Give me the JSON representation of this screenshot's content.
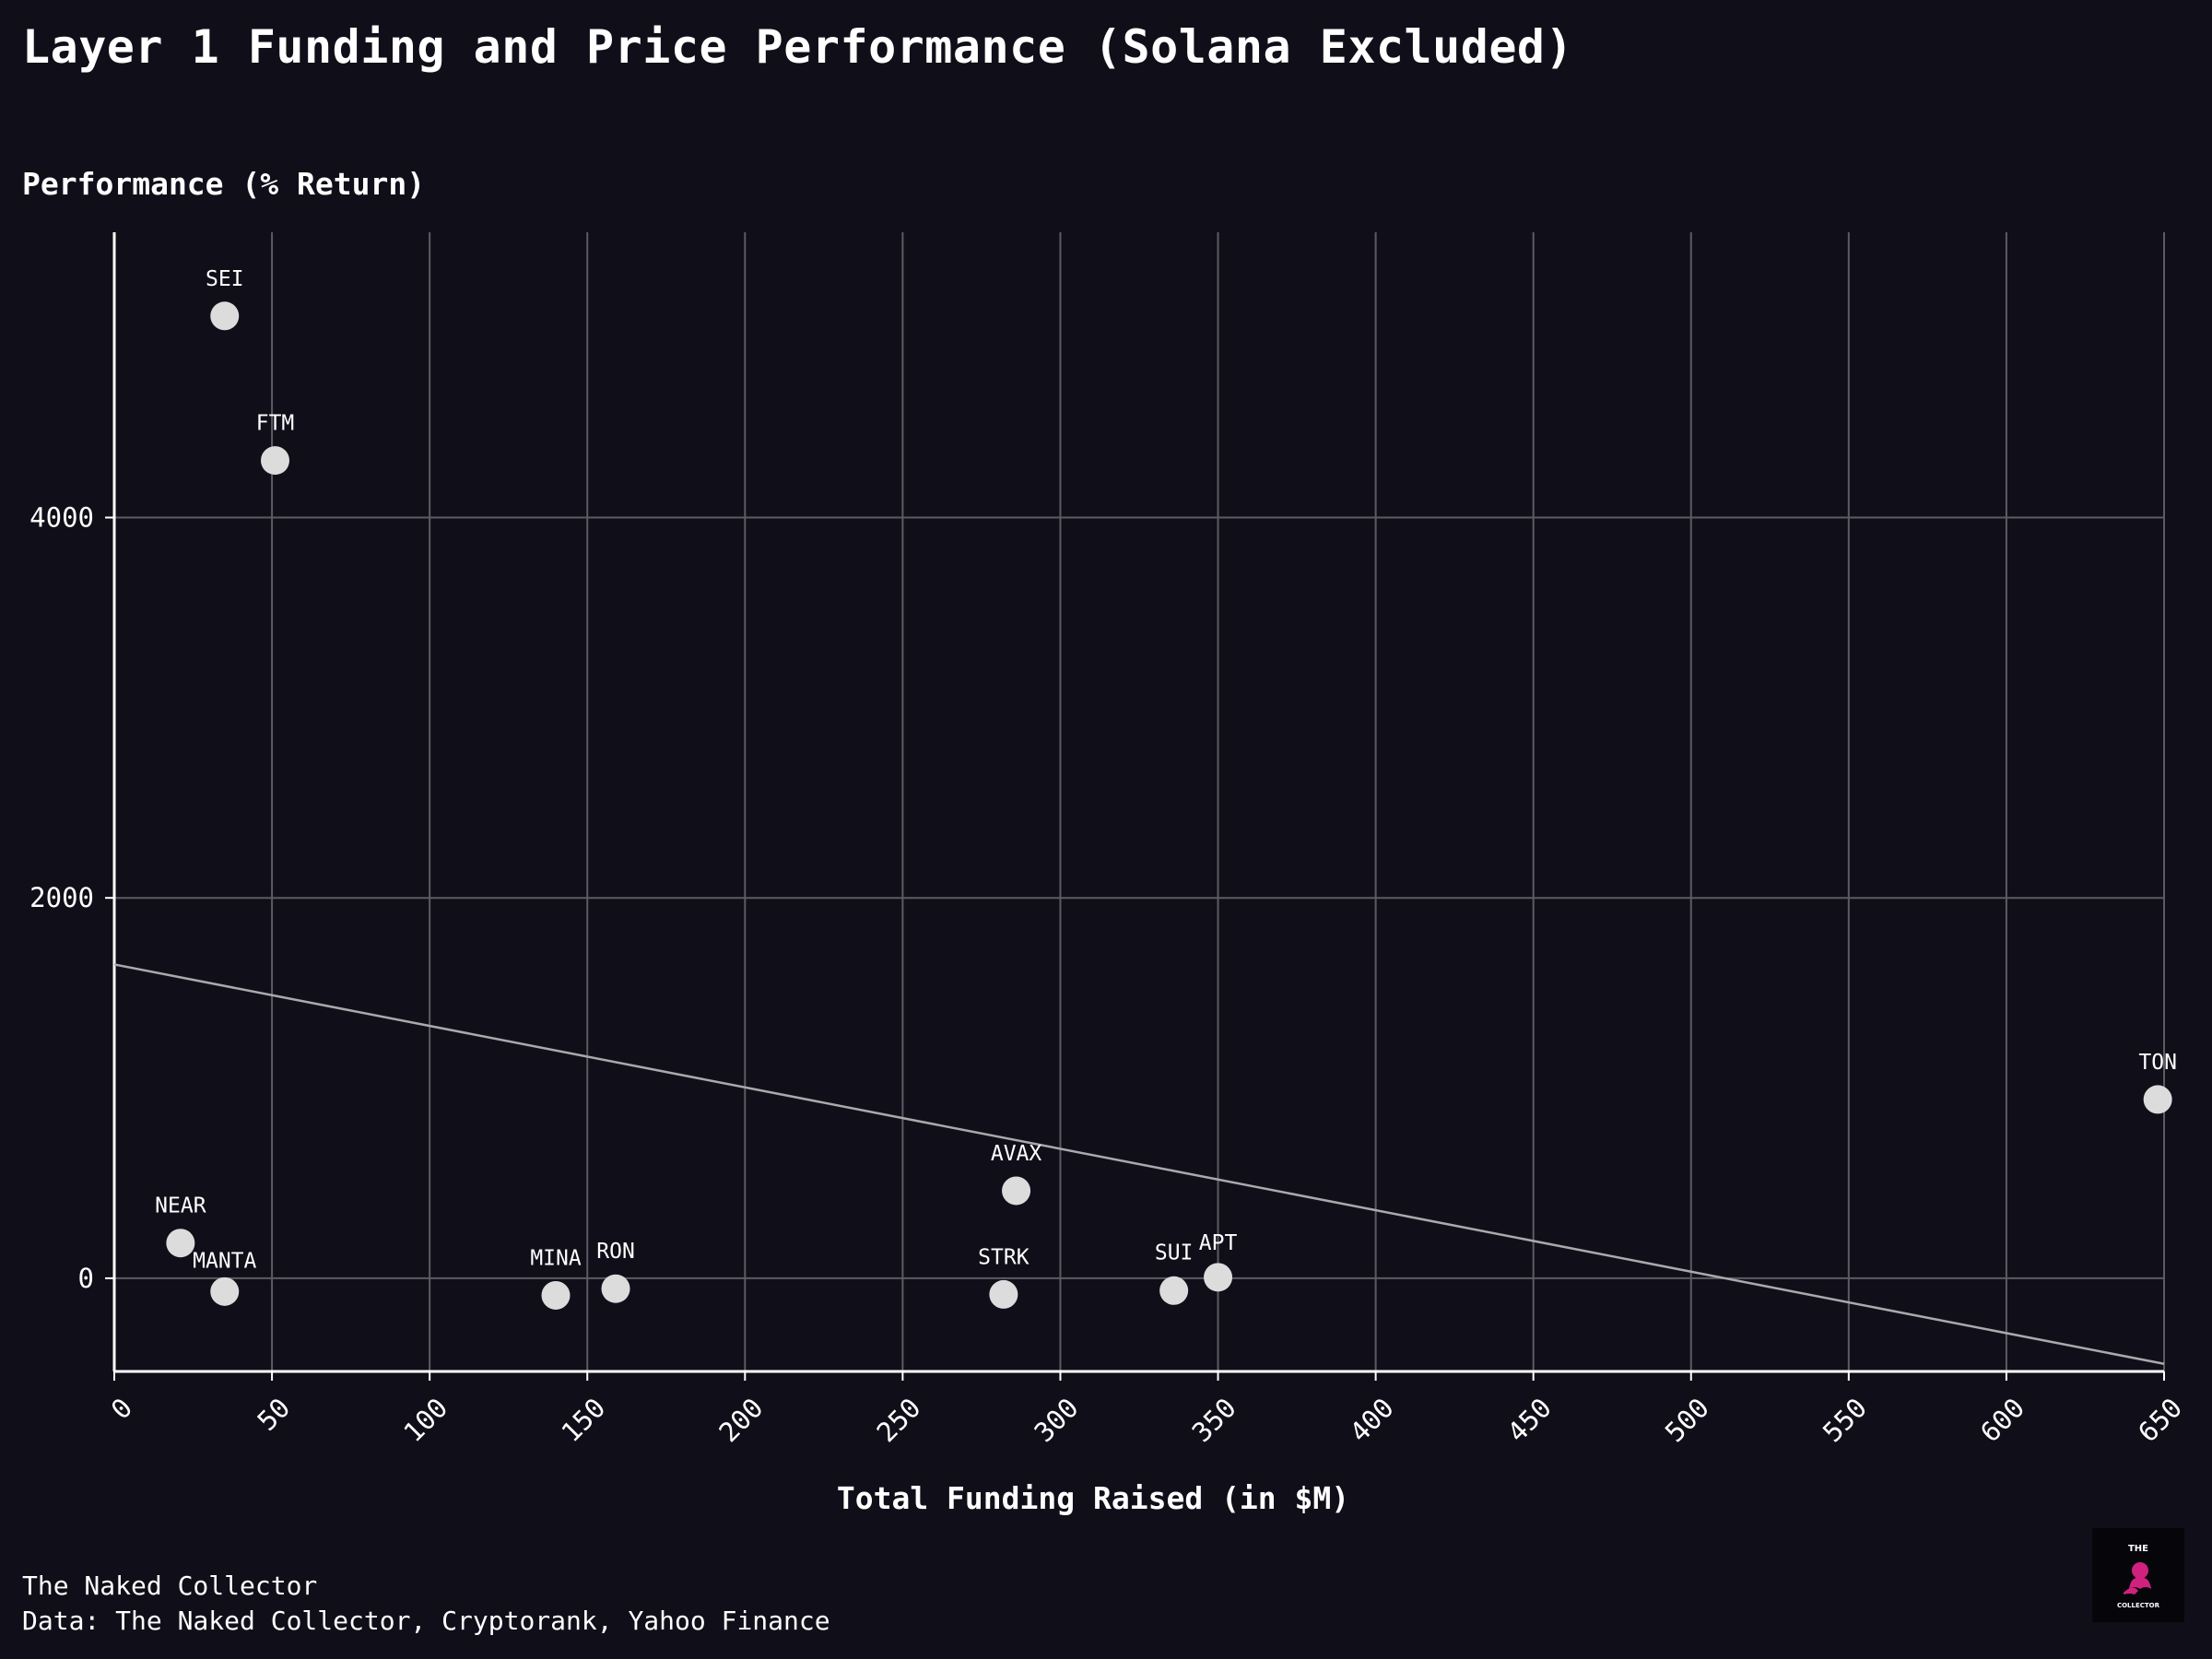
{
  "title": "Layer 1 Funding and Price Performance (Solana Excluded)",
  "footer": {
    "line1": "The Naked Collector",
    "line2": "Data: The Naked Collector, Cryptorank, Yahoo Finance"
  },
  "logo": {
    "top_text": "THE",
    "bottom_text": "COLLECTOR",
    "accent_color": "#d0217f"
  },
  "colors": {
    "background": "#100f19",
    "grid": "#5c5b63",
    "axis": "#ffffff",
    "points": "#dcdcdc",
    "trend": "#a9a9ae",
    "text": "#ffffff"
  },
  "chart_data": {
    "type": "scatter",
    "title": "Layer 1 Funding and Price Performance (Solana Excluded)",
    "xlabel": "Total Funding Raised (in $M)",
    "ylabel": "Performance (% Return)",
    "xlim": [
      0,
      650
    ],
    "ylim": [
      -490,
      5500
    ],
    "x_ticks": [
      0,
      50,
      100,
      150,
      200,
      250,
      300,
      350,
      400,
      450,
      500,
      550,
      600,
      650
    ],
    "y_ticks": [
      0,
      2000,
      4000
    ],
    "grid": true,
    "points": [
      {
        "label": "SEI",
        "x": 35,
        "y": 5060
      },
      {
        "label": "FTM",
        "x": 51,
        "y": 4300
      },
      {
        "label": "NEAR",
        "x": 21,
        "y": 185
      },
      {
        "label": "MANTA",
        "x": 35,
        "y": -70
      },
      {
        "label": "MINA",
        "x": 140,
        "y": -90
      },
      {
        "label": "RON",
        "x": 159,
        "y": -55
      },
      {
        "label": "STRK",
        "x": 282,
        "y": -85
      },
      {
        "label": "AVAX",
        "x": 286,
        "y": 460
      },
      {
        "label": "SUI",
        "x": 336,
        "y": -65
      },
      {
        "label": "APT",
        "x": 350,
        "y": 5
      },
      {
        "label": "TON",
        "x": 648,
        "y": 940
      }
    ],
    "trendline": {
      "x": [
        0,
        650
      ],
      "y": [
        1650,
        -450
      ]
    }
  }
}
